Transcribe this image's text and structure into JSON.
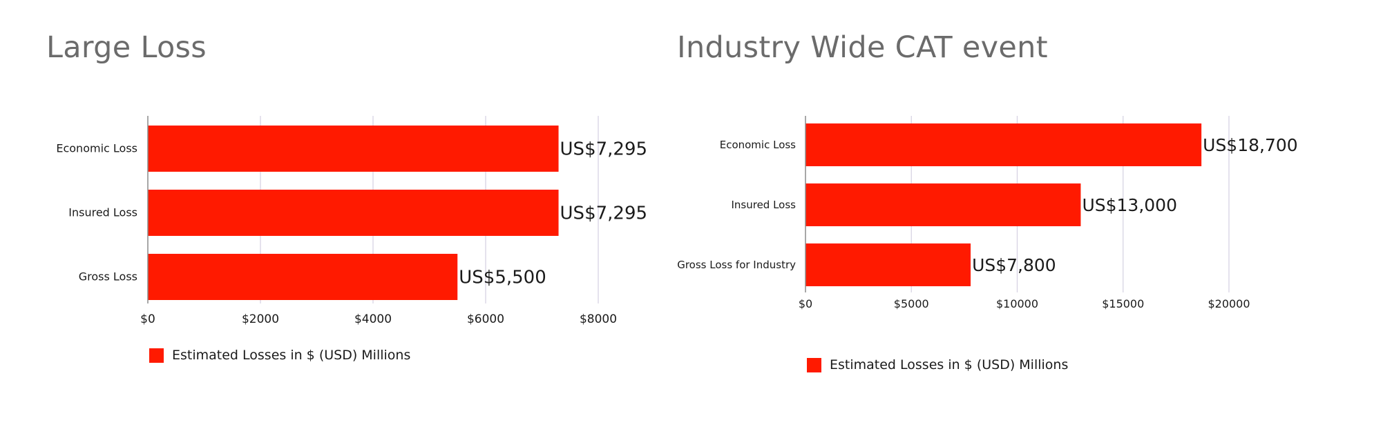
{
  "colors": {
    "bar": "#ff1a00",
    "grid": "#d7d3e3",
    "axis": "#8a8a8a",
    "title": "#6b6b6b",
    "text": "#1a1a1a"
  },
  "charts": [
    {
      "title": "Large Loss",
      "legend": "Estimated Losses in $ (USD) Millions"
    },
    {
      "title": "Industry Wide CAT event",
      "legend": "Estimated Losses in $ (USD) Millions"
    }
  ],
  "chart_data": [
    {
      "type": "bar",
      "orientation": "horizontal",
      "title": "Large Loss",
      "categories": [
        "Economic Loss",
        "Insured Loss",
        "Gross Loss"
      ],
      "series": [
        {
          "name": "Estimated Losses in $ (USD) Millions",
          "values": [
            7295,
            7295,
            5500
          ]
        }
      ],
      "data_labels": [
        "US$7,295",
        "US$7,295",
        "US$5,500"
      ],
      "xlim": [
        0,
        8000
      ],
      "xticks": [
        0,
        2000,
        4000,
        6000,
        8000
      ],
      "xtick_labels": [
        "$0",
        "$2000",
        "$4000",
        "$6000",
        "$8000"
      ],
      "grid": true,
      "legend_position": "bottom-left"
    },
    {
      "type": "bar",
      "orientation": "horizontal",
      "title": "Industry Wide CAT event",
      "categories": [
        "Economic Loss",
        "Insured Loss",
        "Gross Loss for Industry"
      ],
      "series": [
        {
          "name": "Estimated Losses in $ (USD) Millions",
          "values": [
            18700,
            13000,
            7800
          ]
        }
      ],
      "data_labels": [
        "US$18,700",
        "US$13,000",
        "US$7,800"
      ],
      "xlim": [
        0,
        20000
      ],
      "xticks": [
        0,
        5000,
        10000,
        15000,
        20000
      ],
      "xtick_labels": [
        "$0",
        "$5000",
        "$10000",
        "$15000",
        "$20000"
      ],
      "grid": true,
      "legend_position": "bottom-left"
    }
  ]
}
